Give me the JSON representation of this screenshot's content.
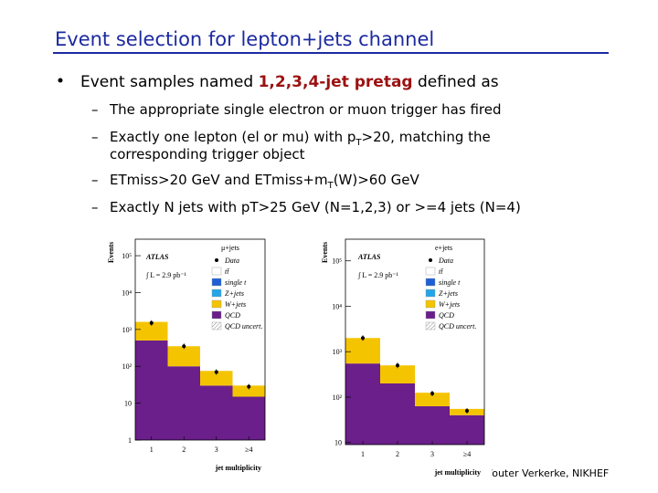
{
  "title": "Event selection for lepton+jets channel",
  "bullet": {
    "pre": "Event samples named ",
    "highlight": "1,2,3,4-jet pretag",
    "post": " defined as"
  },
  "items": [
    [
      [
        {
          "text": "The appropriate single electron or muon trigger has fired"
        }
      ]
    ],
    [
      [
        {
          "text": "Exactly one lepton (el or mu) with p"
        },
        {
          "subscript": "T"
        },
        {
          "text": ">20, matching the"
        }
      ],
      [
        {
          "text": "corresponding trigger object"
        }
      ]
    ],
    [
      [
        {
          "text": "ETmiss>20 GeV and ETmiss+m"
        },
        {
          "subscript": "T"
        },
        {
          "text": "(W)>60 GeV"
        }
      ]
    ],
    [
      [
        {
          "text": "Exactly N jets with pT>25 GeV (N=1,2,3) or >=4 jets (N=4)"
        }
      ]
    ]
  ],
  "footer": "Wouter Verkerke, NIKHEF",
  "chart_data": [
    {
      "type": "bar",
      "stacked": true,
      "log_y": true,
      "experiment": "ATLAS",
      "channel": "μ+jets",
      "luminosity": "∫ L = 2.9 pb⁻¹",
      "ylabel": "Events",
      "xlabel": "jet multiplicity",
      "categories": [
        "1",
        "2",
        "3",
        "≥4"
      ],
      "ylim": [
        1,
        280000
      ],
      "yticks": [
        1,
        10,
        {
          "value": 100,
          "label": "10²"
        },
        {
          "value": 1000,
          "label": "10³"
        },
        {
          "value": 10000,
          "label": "10⁴"
        },
        {
          "value": 100000,
          "label": "10⁵"
        }
      ],
      "series": [
        {
          "name": "QCD",
          "color": "#6a1f8a",
          "values": [
            500,
            100,
            30,
            15
          ]
        },
        {
          "name": "W+jets",
          "color": "#f5c400",
          "values": [
            1100,
            250,
            45,
            15
          ]
        }
      ],
      "data": {
        "name": "Data",
        "values": [
          1500,
          350,
          70,
          28
        ]
      },
      "other_legend": [
        {
          "name": "tt̄",
          "color": "#ffffff"
        },
        {
          "name": "single t",
          "color": "#1f5fd6"
        },
        {
          "name": "Z+jets",
          "color": "#22a6e8"
        }
      ],
      "uncertainty_label": "QCD uncert."
    },
    {
      "type": "bar",
      "stacked": true,
      "log_y": true,
      "experiment": "ATLAS",
      "channel": "e+jets",
      "luminosity": "∫ L = 2.9 pb⁻¹",
      "ylabel": "Events",
      "xlabel": "jet multiplicity",
      "categories": [
        "1",
        "2",
        "3",
        "≥4"
      ],
      "ylim": [
        9,
        300000
      ],
      "yticks": [
        10,
        {
          "value": 100,
          "label": "10²"
        },
        {
          "value": 1000,
          "label": "10³"
        },
        {
          "value": 10000,
          "label": "10⁴"
        },
        {
          "value": 100000,
          "label": "10⁵"
        }
      ],
      "series": [
        {
          "name": "QCD",
          "color": "#6a1f8a",
          "values": [
            550,
            200,
            63,
            40
          ]
        },
        {
          "name": "W+jets",
          "color": "#f5c400",
          "values": [
            1450,
            300,
            62,
            15
          ]
        }
      ],
      "data": {
        "name": "Data",
        "values": [
          2000,
          500,
          120,
          50
        ]
      },
      "other_legend": [
        {
          "name": "tt̄",
          "color": "#ffffff"
        },
        {
          "name": "single t",
          "color": "#1f5fd6"
        },
        {
          "name": "Z+jets",
          "color": "#22a6e8"
        }
      ],
      "uncertainty_label": "QCD uncert."
    }
  ]
}
